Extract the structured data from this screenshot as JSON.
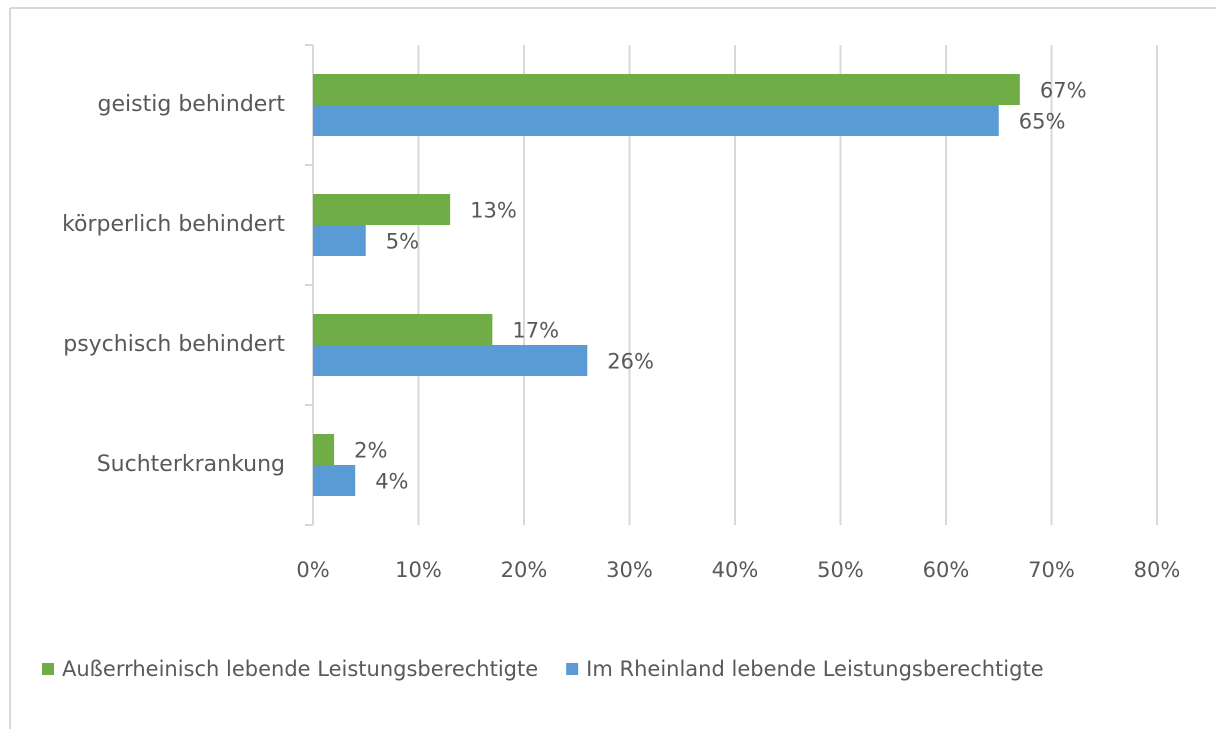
{
  "chart_data": {
    "type": "barh",
    "categories": [
      "geistig behindert",
      "körperlich behindert",
      "psychisch behindert",
      "Suchterkrankung"
    ],
    "series": [
      {
        "name": "Außerrheinisch lebende Leistungsberechtigte",
        "color": "#70ad47",
        "values": [
          67,
          13,
          17,
          2
        ],
        "value_labels": [
          "67%",
          "13%",
          "17%",
          "2%"
        ]
      },
      {
        "name": "Im Rheinland lebende Leistungsberechtigte",
        "color": "#5b9bd5",
        "values": [
          65,
          5,
          26,
          4
        ],
        "value_labels": [
          "65%",
          "5%",
          "26%",
          "4%"
        ]
      }
    ],
    "xlim": [
      0,
      80
    ],
    "xticks": [
      {
        "value": 0,
        "label": "0%"
      },
      {
        "value": 10,
        "label": "10%"
      },
      {
        "value": 20,
        "label": "20%"
      },
      {
        "value": 30,
        "label": "30%"
      },
      {
        "value": 40,
        "label": "40%"
      },
      {
        "value": 50,
        "label": "50%"
      },
      {
        "value": 60,
        "label": "60%"
      },
      {
        "value": 70,
        "label": "70%"
      },
      {
        "value": 80,
        "label": "80%"
      }
    ],
    "grid": true,
    "legend": "bottom"
  }
}
